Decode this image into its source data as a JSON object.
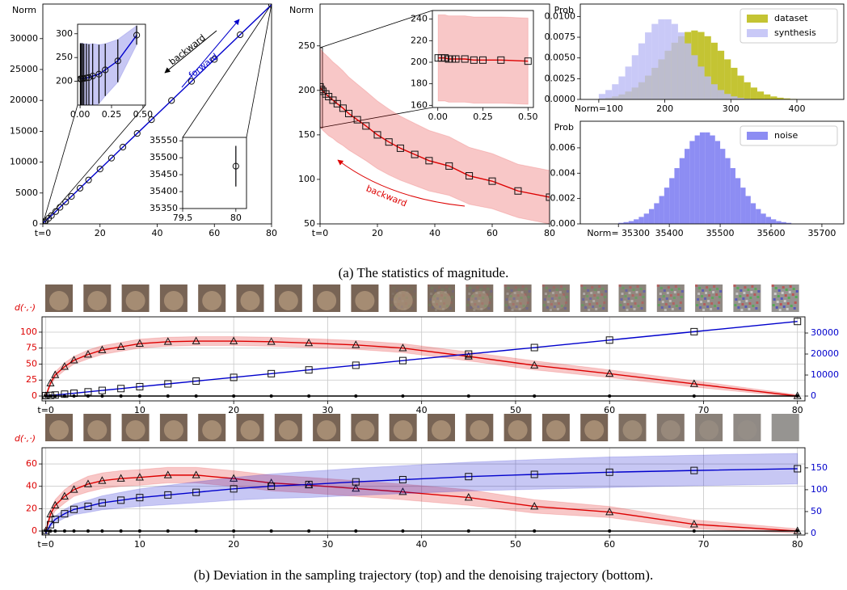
{
  "chart_data": [
    {
      "type": "line",
      "ylabel": "Norm",
      "xlim": [
        0,
        80
      ],
      "xticks": [
        {
          "value": 0,
          "label": "t=0"
        },
        20,
        40,
        60,
        80
      ],
      "ylim": [
        0,
        35600
      ],
      "yticks": [
        0,
        5000,
        10000,
        15000,
        20000,
        25000,
        30000
      ],
      "series": [
        {
          "color": "#0000cc",
          "marker": "circle",
          "x": [
            0,
            0.5,
            1,
            2,
            3,
            4.5,
            6,
            8,
            10,
            13,
            16,
            20,
            24,
            28,
            33,
            38,
            45,
            52,
            60,
            69,
            80
          ],
          "values": [
            205,
            300,
            490,
            900,
            1340,
            2000,
            2680,
            3560,
            4450,
            5780,
            7110,
            8880,
            10650,
            12430,
            14650,
            16870,
            19980,
            23080,
            26630,
            30630,
            35500
          ]
        }
      ],
      "annotations": [
        {
          "text": "backward",
          "color": "#000000"
        },
        {
          "text": "forward",
          "color": "#0000cc"
        }
      ]
    },
    {
      "type": "line",
      "ylabel": "Norm",
      "xlim": [
        0,
        80
      ],
      "xticks": [
        {
          "value": 0,
          "label": "t=0"
        },
        20,
        40,
        60,
        80
      ],
      "ylim": [
        50,
        297
      ],
      "yticks": [
        50,
        100,
        150,
        200,
        250
      ],
      "series": [
        {
          "color": "#dd0000",
          "marker": "square",
          "band": true,
          "x": [
            0,
            0.5,
            1,
            2,
            3,
            4.5,
            6,
            8,
            10,
            13,
            16,
            20,
            24,
            28,
            33,
            38,
            45,
            52,
            60,
            69,
            80
          ],
          "values": [
            204,
            201,
            199,
            196,
            193,
            189,
            185,
            180,
            174,
            167,
            160,
            150,
            142,
            135,
            128,
            121,
            115,
            104,
            98,
            87,
            80
          ],
          "errors": [
            44,
            44,
            44,
            44,
            44,
            43,
            43,
            42,
            41,
            40,
            39,
            38,
            37,
            36,
            35,
            34,
            33,
            32,
            31,
            30,
            30
          ]
        }
      ],
      "annotations": [
        {
          "text": "backward",
          "color": "#dd0000"
        }
      ]
    },
    {
      "type": "histogram",
      "ylabel": "Prob",
      "legend": "upper right",
      "xlim": [
        72,
        471
      ],
      "xticks": [
        {
          "value": 100,
          "label": "Norm=100"
        },
        200,
        300,
        400
      ],
      "ylim": [
        0,
        0.0115
      ],
      "yticks": [
        {
          "value": 0,
          "label": "0.0000"
        },
        {
          "value": 0.0025,
          "label": "0.0025"
        },
        {
          "value": 0.005,
          "label": "0.0050"
        },
        {
          "value": 0.0075,
          "label": "0.0075"
        },
        {
          "value": 0.01,
          "label": "0.0100"
        }
      ],
      "bins": [
        100,
        110,
        120,
        130,
        140,
        150,
        160,
        170,
        180,
        190,
        200,
        210,
        220,
        230,
        240,
        250,
        260,
        270,
        280,
        290,
        300,
        310,
        320,
        330,
        340,
        350,
        360,
        370,
        380,
        390,
        400,
        410,
        420,
        430
      ],
      "series": [
        {
          "name": "dataset",
          "color": "#b5b500",
          "values": [
            0.00012,
            0.00021,
            0.00036,
            0.0006,
            0.00095,
            0.00143,
            0.00207,
            0.00287,
            0.00381,
            0.00483,
            0.00587,
            0.00684,
            0.00762,
            0.00813,
            0.00831,
            0.00813,
            0.00762,
            0.00684,
            0.00587,
            0.00483,
            0.00381,
            0.00287,
            0.00207,
            0.00143,
            0.00095,
            0.0006,
            0.00036,
            0.00021,
            0.00012,
            6e-05,
            3e-05,
            2e-05,
            1e-05
          ]
        },
        {
          "name": "synthesis",
          "color": "#bcbcf5",
          "values": [
            0.00066,
            0.00113,
            0.00183,
            0.00277,
            0.00396,
            0.00533,
            0.00676,
            0.00808,
            0.0091,
            0.00966,
            0.00966,
            0.0091,
            0.00808,
            0.00676,
            0.00533,
            0.00396,
            0.00277,
            0.00183,
            0.00113,
            0.00066,
            0.00037,
            0.00019,
            9e-05,
            4e-05,
            2e-05,
            1e-05,
            0,
            0,
            0,
            0,
            0,
            0,
            0
          ]
        }
      ]
    },
    {
      "type": "histogram",
      "ylabel": "Prob",
      "legend": "upper right",
      "xlim": [
        35225,
        35743
      ],
      "xticks": [
        {
          "value": 35300,
          "label": "Norm= 35300"
        },
        35400,
        35500,
        35600,
        35700
      ],
      "ylim": [
        0,
        0.0081
      ],
      "yticks": [
        {
          "value": 0,
          "label": "0.000"
        },
        {
          "value": 0.002,
          "label": "0.002"
        },
        {
          "value": 0.004,
          "label": "0.004"
        },
        {
          "value": 0.006,
          "label": "0.006"
        }
      ],
      "bins": [
        35300,
        35310,
        35320,
        35330,
        35340,
        35350,
        35360,
        35370,
        35380,
        35390,
        35400,
        35410,
        35420,
        35430,
        35440,
        35450,
        35460,
        35470,
        35480,
        35490,
        35500,
        35510,
        35520,
        35530,
        35540,
        35550,
        35560,
        35570,
        35580,
        35590,
        35600,
        35610,
        35620,
        35630,
        35640
      ],
      "series": [
        {
          "name": "noise",
          "color": "#7070f0",
          "values": [
            8e-05,
            0.00014,
            0.00022,
            0.00036,
            0.00055,
            0.00081,
            0.00117,
            0.00163,
            0.0022,
            0.00286,
            0.00361,
            0.0044,
            0.00519,
            0.00592,
            0.00654,
            0.00698,
            0.00722,
            0.00722,
            0.00698,
            0.00654,
            0.00592,
            0.00519,
            0.0044,
            0.00361,
            0.00286,
            0.0022,
            0.00163,
            0.00117,
            0.00081,
            0.00055,
            0.00036,
            0.00022,
            0.00014,
            8e-05
          ]
        }
      ]
    },
    {
      "type": "line",
      "xlim": [
        -0.02,
        0.52
      ],
      "xticks": [
        {
          "value": 0,
          "label": "0.00"
        },
        {
          "value": 0.25,
          "label": "0.25"
        },
        {
          "value": 0.5,
          "label": "0.50"
        }
      ],
      "ylim": [
        150,
        320
      ],
      "yticks": [
        200,
        250,
        300
      ],
      "series": [
        {
          "color": "#0000cc",
          "marker": "circle",
          "band": true,
          "errorbars": true,
          "x": [
            0.002,
            0.01,
            0.02,
            0.03,
            0.05,
            0.07,
            0.1,
            0.15,
            0.2,
            0.3,
            0.45
          ],
          "values": [
            205,
            205,
            206,
            206,
            207,
            208,
            211,
            215,
            224,
            243,
            297
          ],
          "errors": [
            75,
            75,
            74,
            73,
            72,
            70,
            68,
            62,
            55,
            45,
            20
          ]
        }
      ]
    },
    {
      "type": "line",
      "xlim": [
        79.5,
        80.1
      ],
      "xticks": [
        79.5,
        80
      ],
      "ylim": [
        35350,
        35560
      ],
      "yticks": [
        35350,
        35400,
        35450,
        35500,
        35550
      ],
      "series": [
        {
          "color": "#0000cc",
          "marker": "circle",
          "band": true,
          "errorbars": true,
          "x": [
            80
          ],
          "values": [
            35475
          ],
          "errors": [
            60
          ]
        }
      ]
    },
    {
      "type": "line",
      "xlim": [
        -0.03,
        0.53
      ],
      "xticks": [
        {
          "value": 0,
          "label": "0.00"
        },
        {
          "value": 0.25,
          "label": "0.25"
        },
        {
          "value": 0.5,
          "label": "0.50"
        }
      ],
      "ylim": [
        158,
        248
      ],
      "yticks": [
        160,
        180,
        200,
        220,
        240
      ],
      "series": [
        {
          "color": "#dd0000",
          "marker": "square",
          "band": true,
          "x": [
            0.002,
            0.02,
            0.04,
            0.06,
            0.08,
            0.1,
            0.15,
            0.2,
            0.25,
            0.35,
            0.5
          ],
          "values": [
            204,
            204,
            204,
            203,
            203,
            203,
            203,
            202,
            202,
            202,
            201
          ],
          "errors": [
            40,
            40,
            40,
            40,
            40,
            40,
            40,
            40,
            40,
            40,
            40
          ]
        }
      ]
    },
    {
      "type": "line",
      "ylabel": "d(·,·)",
      "grid": true,
      "ytick_color": "#dd0000",
      "y2tick_color": "#0000cc",
      "xlim": [
        -0.4,
        80.8
      ],
      "xticks": [
        {
          "value": 0,
          "label": "t=0"
        },
        10,
        20,
        30,
        40,
        50,
        60,
        70,
        80
      ],
      "ylim": [
        -7.6,
        124
      ],
      "yticks": [
        0,
        25,
        50,
        75,
        100
      ],
      "y2lim": [
        -2300,
        37700
      ],
      "y2ticks": [
        0,
        10000,
        20000,
        30000
      ],
      "series": [
        {
          "color": "#dd0000",
          "marker": "triangle",
          "band": true,
          "x": [
            0,
            0.5,
            1,
            2,
            3,
            4.5,
            6,
            8,
            10,
            13,
            16,
            20,
            24,
            28,
            33,
            38,
            45,
            52,
            60,
            69,
            80
          ],
          "values": [
            0,
            20,
            33,
            46,
            56,
            65,
            72,
            77,
            82,
            85,
            86,
            86,
            85,
            83,
            80,
            75,
            62,
            48,
            35,
            19,
            0
          ],
          "errors": [
            1,
            4,
            5,
            6,
            6,
            7,
            7,
            7,
            7,
            7,
            7,
            7,
            7,
            7,
            7,
            7,
            7,
            7,
            6,
            5,
            2
          ]
        },
        {
          "color": "#0000cc",
          "marker": "square",
          "axis": "y2",
          "x": [
            0,
            0.5,
            1,
            2,
            3,
            4.5,
            6,
            8,
            10,
            13,
            16,
            20,
            24,
            28,
            33,
            38,
            45,
            52,
            60,
            69,
            80
          ],
          "values": [
            205,
            300,
            490,
            900,
            1340,
            2000,
            2680,
            3560,
            4450,
            5780,
            7110,
            8880,
            10650,
            12430,
            14650,
            16870,
            19980,
            23080,
            26630,
            30630,
            35500
          ]
        },
        {
          "color": "#000000",
          "marker": "dot",
          "x": [
            0,
            0.5,
            1,
            2,
            3,
            4.5,
            6,
            8,
            10,
            13,
            16,
            20,
            24,
            28,
            33,
            38,
            45,
            52,
            60,
            69,
            80
          ],
          "values": [
            0,
            0,
            0,
            0,
            0,
            0,
            0,
            0,
            0,
            0,
            0,
            0,
            0,
            0,
            0,
            0,
            0,
            0,
            0,
            0,
            0
          ]
        }
      ]
    },
    {
      "type": "line",
      "ylabel": "d(·,·)",
      "grid": true,
      "ytick_color": "#dd0000",
      "y2tick_color": "#0000cc",
      "xlim": [
        -0.4,
        80.8
      ],
      "xticks": [
        {
          "value": 0,
          "label": "t=0"
        },
        10,
        20,
        30,
        40,
        50,
        60,
        70,
        80
      ],
      "ylim": [
        -3.6,
        74.5
      ],
      "yticks": [
        0,
        20,
        40,
        60
      ],
      "y2lim": [
        -3.7,
        196
      ],
      "y2ticks": [
        0,
        50,
        100,
        150
      ],
      "series": [
        {
          "color": "#dd0000",
          "marker": "triangle",
          "band": true,
          "x": [
            0,
            0.5,
            1,
            2,
            3,
            4.5,
            6,
            8,
            10,
            13,
            16,
            20,
            24,
            28,
            33,
            38,
            45,
            52,
            60,
            69,
            80
          ],
          "values": [
            0,
            15,
            23,
            31,
            37,
            42,
            45,
            47,
            48,
            50,
            50,
            47,
            43,
            41,
            38,
            35,
            30,
            22,
            17,
            6,
            0
          ],
          "errors": [
            1,
            4,
            5,
            6,
            6,
            7,
            7,
            7,
            7,
            7,
            7,
            7,
            7,
            7,
            7,
            7,
            7,
            6,
            5,
            4,
            2
          ]
        },
        {
          "color": "#0000cc",
          "marker": "square",
          "axis": "y2",
          "band": true,
          "x": [
            0,
            0.5,
            1,
            2,
            3,
            4.5,
            6,
            8,
            10,
            13,
            16,
            20,
            24,
            28,
            33,
            38,
            45,
            52,
            60,
            69,
            80
          ],
          "values": [
            0,
            20,
            32,
            45,
            55,
            62,
            70,
            76,
            82,
            88,
            94,
            102,
            108,
            112,
            118,
            123,
            130,
            135,
            140,
            144,
            148
          ],
          "errors": [
            0,
            5,
            8,
            10,
            12,
            14,
            16,
            18,
            20,
            22,
            24,
            26,
            28,
            30,
            31,
            32,
            33,
            34,
            35,
            35,
            35
          ]
        },
        {
          "color": "#000000",
          "marker": "dot",
          "x": [
            0,
            0.5,
            1,
            2,
            3,
            4.5,
            6,
            8,
            10,
            13,
            16,
            20,
            24,
            28,
            33,
            38,
            45,
            52,
            60,
            69,
            80
          ],
          "values": [
            0,
            0,
            0,
            0,
            0,
            0,
            0,
            0,
            0,
            0,
            0,
            0,
            0,
            0,
            0,
            0,
            0,
            0,
            0,
            0,
            0
          ]
        }
      ]
    }
  ],
  "captions": [
    "(a) The statistics of magnitude.",
    "(b) Deviation in the sampling trajectory (top) and the denoising trajectory (bottom)."
  ]
}
